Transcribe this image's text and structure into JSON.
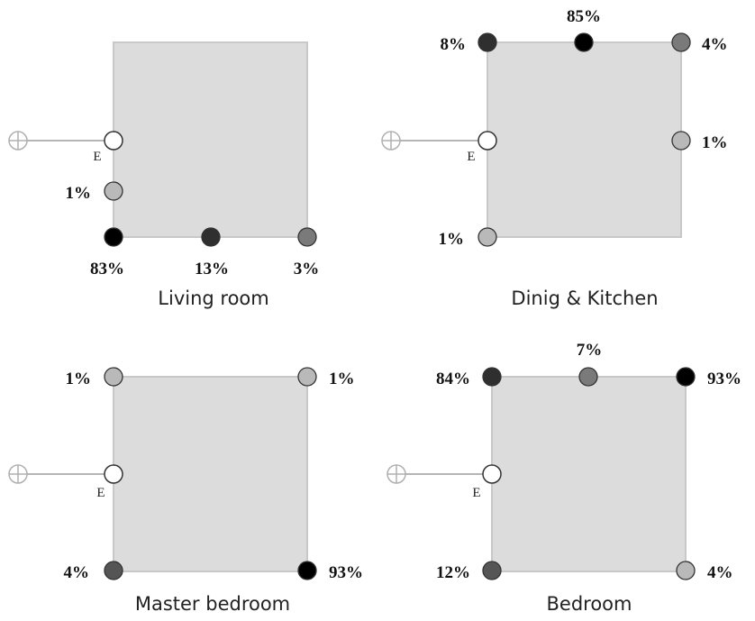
{
  "colors": {
    "room_fill": "#dcdcdc",
    "room_border": "#c8c8c8",
    "entry_marker": "#ffffff",
    "level_0": "#000000",
    "level_1": "#2f2f2f",
    "level_2": "#555555",
    "level_3": "#7a7a7a",
    "level_4": "#b9b9b9"
  },
  "entry_icon": "circle-cross-icon",
  "rooms": [
    {
      "name": "Living room",
      "entry_label": "E",
      "points": [
        {
          "label": "1%",
          "shade": "level_4"
        },
        {
          "label": "83%",
          "shade": "level_0"
        },
        {
          "label": "13%",
          "shade": "level_1"
        },
        {
          "label": "3%",
          "shade": "level_3"
        }
      ]
    },
    {
      "name": "Dinig & Kitchen",
      "entry_label": "E",
      "points": [
        {
          "label": "8%",
          "shade": "level_1"
        },
        {
          "label": "85%",
          "shade": "level_0"
        },
        {
          "label": "4%",
          "shade": "level_3"
        },
        {
          "label": "1%",
          "shade": "level_4"
        },
        {
          "label": "1%",
          "shade": "level_4"
        }
      ]
    },
    {
      "name": "Master bedroom",
      "entry_label": "E",
      "points": [
        {
          "label": "1%",
          "shade": "level_4"
        },
        {
          "label": "1%",
          "shade": "level_4"
        },
        {
          "label": "4%",
          "shade": "level_2"
        },
        {
          "label": "93%",
          "shade": "level_0"
        }
      ]
    },
    {
      "name": "Bedroom",
      "entry_label": "E",
      "points": [
        {
          "label": "84%",
          "shade": "level_1"
        },
        {
          "label": "7%",
          "shade": "level_3"
        },
        {
          "label": "93%",
          "shade": "level_0"
        },
        {
          "label": "12%",
          "shade": "level_2"
        },
        {
          "label": "4%",
          "shade": "level_4"
        }
      ]
    }
  ]
}
